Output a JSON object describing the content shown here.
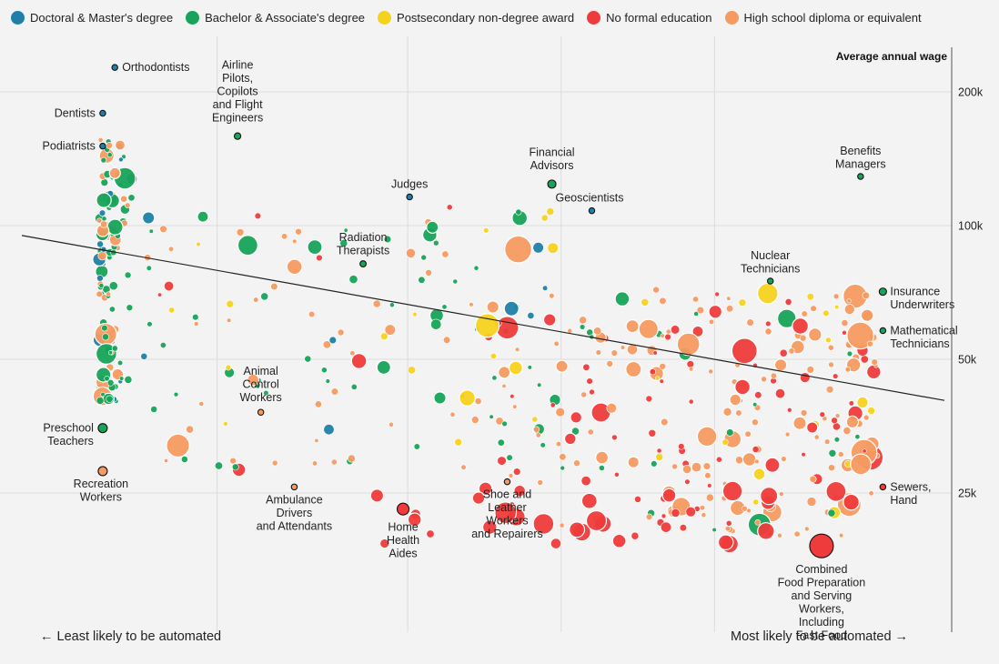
{
  "legend": [
    {
      "label": "Doctoral & Master's degree",
      "color": "#1f7fa6"
    },
    {
      "label": "Bachelor & Associate's degree",
      "color": "#17a35a"
    },
    {
      "label": "Postsecondary non-degree award",
      "color": "#f5d21d"
    },
    {
      "label": "No formal education",
      "color": "#ef3b3b"
    },
    {
      "label": "High school diploma or equivalent",
      "color": "#f59a60"
    }
  ],
  "footer": {
    "left": "← Least likely to be automated",
    "right": "Most likely to be automated →"
  },
  "chart_data": {
    "type": "scatter",
    "ylabel": "Average annual wage",
    "y_scale": "log",
    "y_ticks": [
      {
        "value": 200000,
        "label": "200k"
      },
      {
        "value": 100000,
        "label": "100k"
      },
      {
        "value": 50000,
        "label": "50k"
      },
      {
        "value": 25000,
        "label": "25k"
      }
    ],
    "xlim": [
      0,
      1
    ],
    "ylim": [
      9500,
      240000
    ],
    "grid": true,
    "trendline": [
      {
        "x": 0.0,
        "y": 95000
      },
      {
        "x": 1.0,
        "y": 40000
      }
    ],
    "labeled_points": [
      {
        "text": "Orthodontists",
        "x": 0.1,
        "y": 227000,
        "edu": "doctoral"
      },
      {
        "text": "Dentists",
        "x": 0.087,
        "y": 179000,
        "edu": "doctoral"
      },
      {
        "text": "Podiatrists",
        "x": 0.087,
        "y": 151000,
        "edu": "doctoral"
      },
      {
        "text": "Airline Pilots, Copilots and Flight Engineers",
        "x": 0.232,
        "y": 159000,
        "edu": "bachelor"
      },
      {
        "text": "Judges",
        "x": 0.417,
        "y": 116000,
        "edu": "doctoral"
      },
      {
        "text": "Financial Advisors",
        "x": 0.57,
        "y": 124000,
        "edu": "bachelor"
      },
      {
        "text": "Geoscientists",
        "x": 0.613,
        "y": 108000,
        "edu": "doctoral"
      },
      {
        "text": "Benefits Managers",
        "x": 0.902,
        "y": 129000,
        "edu": "bachelor"
      },
      {
        "text": "Radiation Therapists",
        "x": 0.367,
        "y": 82000,
        "edu": "bachelor"
      },
      {
        "text": "Nuclear Technicians",
        "x": 0.805,
        "y": 75000,
        "edu": "bachelor"
      },
      {
        "text": "Insurance Underwriters",
        "x": 0.926,
        "y": 71000,
        "edu": "bachelor"
      },
      {
        "text": "Mathematical Technicians",
        "x": 0.926,
        "y": 58000,
        "edu": "bachelor"
      },
      {
        "text": "Animal Control Workers",
        "x": 0.257,
        "y": 38000,
        "edu": "hs"
      },
      {
        "text": "Preschool Teachers",
        "x": 0.087,
        "y": 35000,
        "edu": "bachelor"
      },
      {
        "text": "Recreation Workers",
        "x": 0.087,
        "y": 28000,
        "edu": "hs"
      },
      {
        "text": "Ambulance Drivers and Attendants",
        "x": 0.293,
        "y": 25800,
        "edu": "hs"
      },
      {
        "text": "Home Health Aides",
        "x": 0.41,
        "y": 23000,
        "edu": "none"
      },
      {
        "text": "Shoe and Leather Workers and Repairers",
        "x": 0.522,
        "y": 26500,
        "edu": "hs"
      },
      {
        "text": "Sewers, Hand",
        "x": 0.926,
        "y": 25800,
        "edu": "none"
      },
      {
        "text": "Combined Food Preparation and Serving Workers, Including Fast Food",
        "x": 0.86,
        "y": 19000,
        "edu": "none"
      }
    ]
  }
}
